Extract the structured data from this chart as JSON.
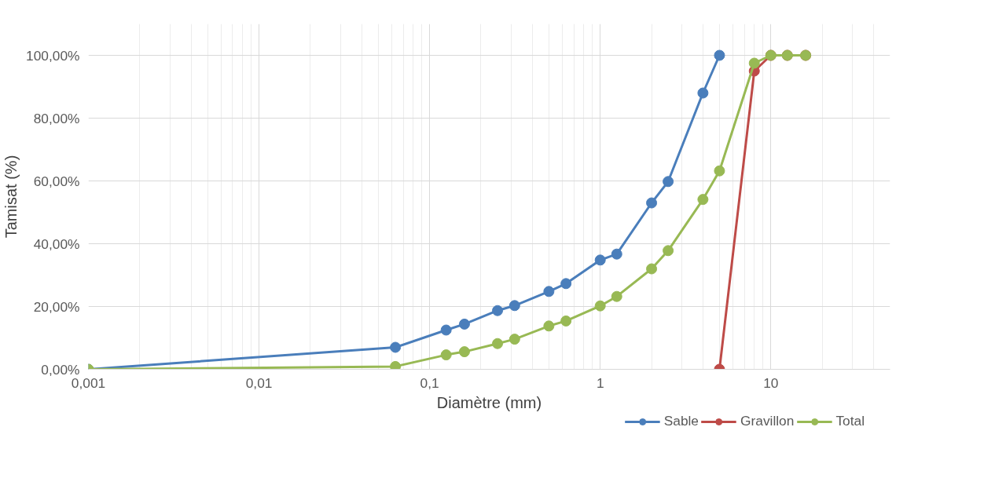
{
  "chart_data": {
    "type": "line",
    "xlabel": "Diamètre (mm)",
    "ylabel": "Tamisat (%)",
    "log": "x",
    "marker": "circle",
    "line_style": "solid",
    "grid": true,
    "legend": "bottom right",
    "xlim": [
      0.001,
      50
    ],
    "xticks": [
      {
        "value": 0.001,
        "label": "0,001"
      },
      {
        "value": 0.01,
        "label": "0,01"
      },
      {
        "value": 0.1,
        "label": "0,1"
      },
      1,
      10
    ],
    "ylim": [
      0,
      110
    ],
    "yticks": [
      {
        "value": 0,
        "label": "0,00%"
      },
      {
        "value": 20,
        "label": "20,00%"
      },
      {
        "value": 40,
        "label": "40,00%"
      },
      {
        "value": 60,
        "label": "60,00%"
      },
      {
        "value": 80,
        "label": "80,00%"
      },
      {
        "value": 100,
        "label": "100,00%"
      }
    ],
    "series": [
      {
        "name": "Sable",
        "color": "#4a7ebb",
        "x": [
          0.001,
          0.063,
          0.125,
          0.16,
          0.25,
          0.315,
          0.5,
          0.63,
          1,
          1.25,
          2,
          2.5,
          4,
          5
        ],
        "values": [
          0,
          7,
          12.5,
          14.4,
          18.7,
          20.3,
          24.8,
          27.3,
          34.8,
          36.7,
          53,
          59.8,
          88,
          100
        ]
      },
      {
        "name": "Gravillon",
        "color": "#be4b48",
        "x": [
          5,
          8,
          10,
          12.5,
          16
        ],
        "values": [
          0,
          95,
          100,
          100,
          100
        ]
      },
      {
        "name": "Total",
        "color": "#98b954",
        "x": [
          0.001,
          0.063,
          0.125,
          0.16,
          0.25,
          0.315,
          0.5,
          0.63,
          1,
          1.25,
          2,
          2.5,
          4,
          5,
          8,
          10,
          12.5,
          16
        ],
        "values": [
          0,
          0.9,
          4.6,
          5.6,
          8.2,
          9.6,
          13.8,
          15.4,
          20.2,
          23.2,
          32,
          37.8,
          54.1,
          63.2,
          97.5,
          100,
          100,
          100
        ]
      }
    ]
  }
}
